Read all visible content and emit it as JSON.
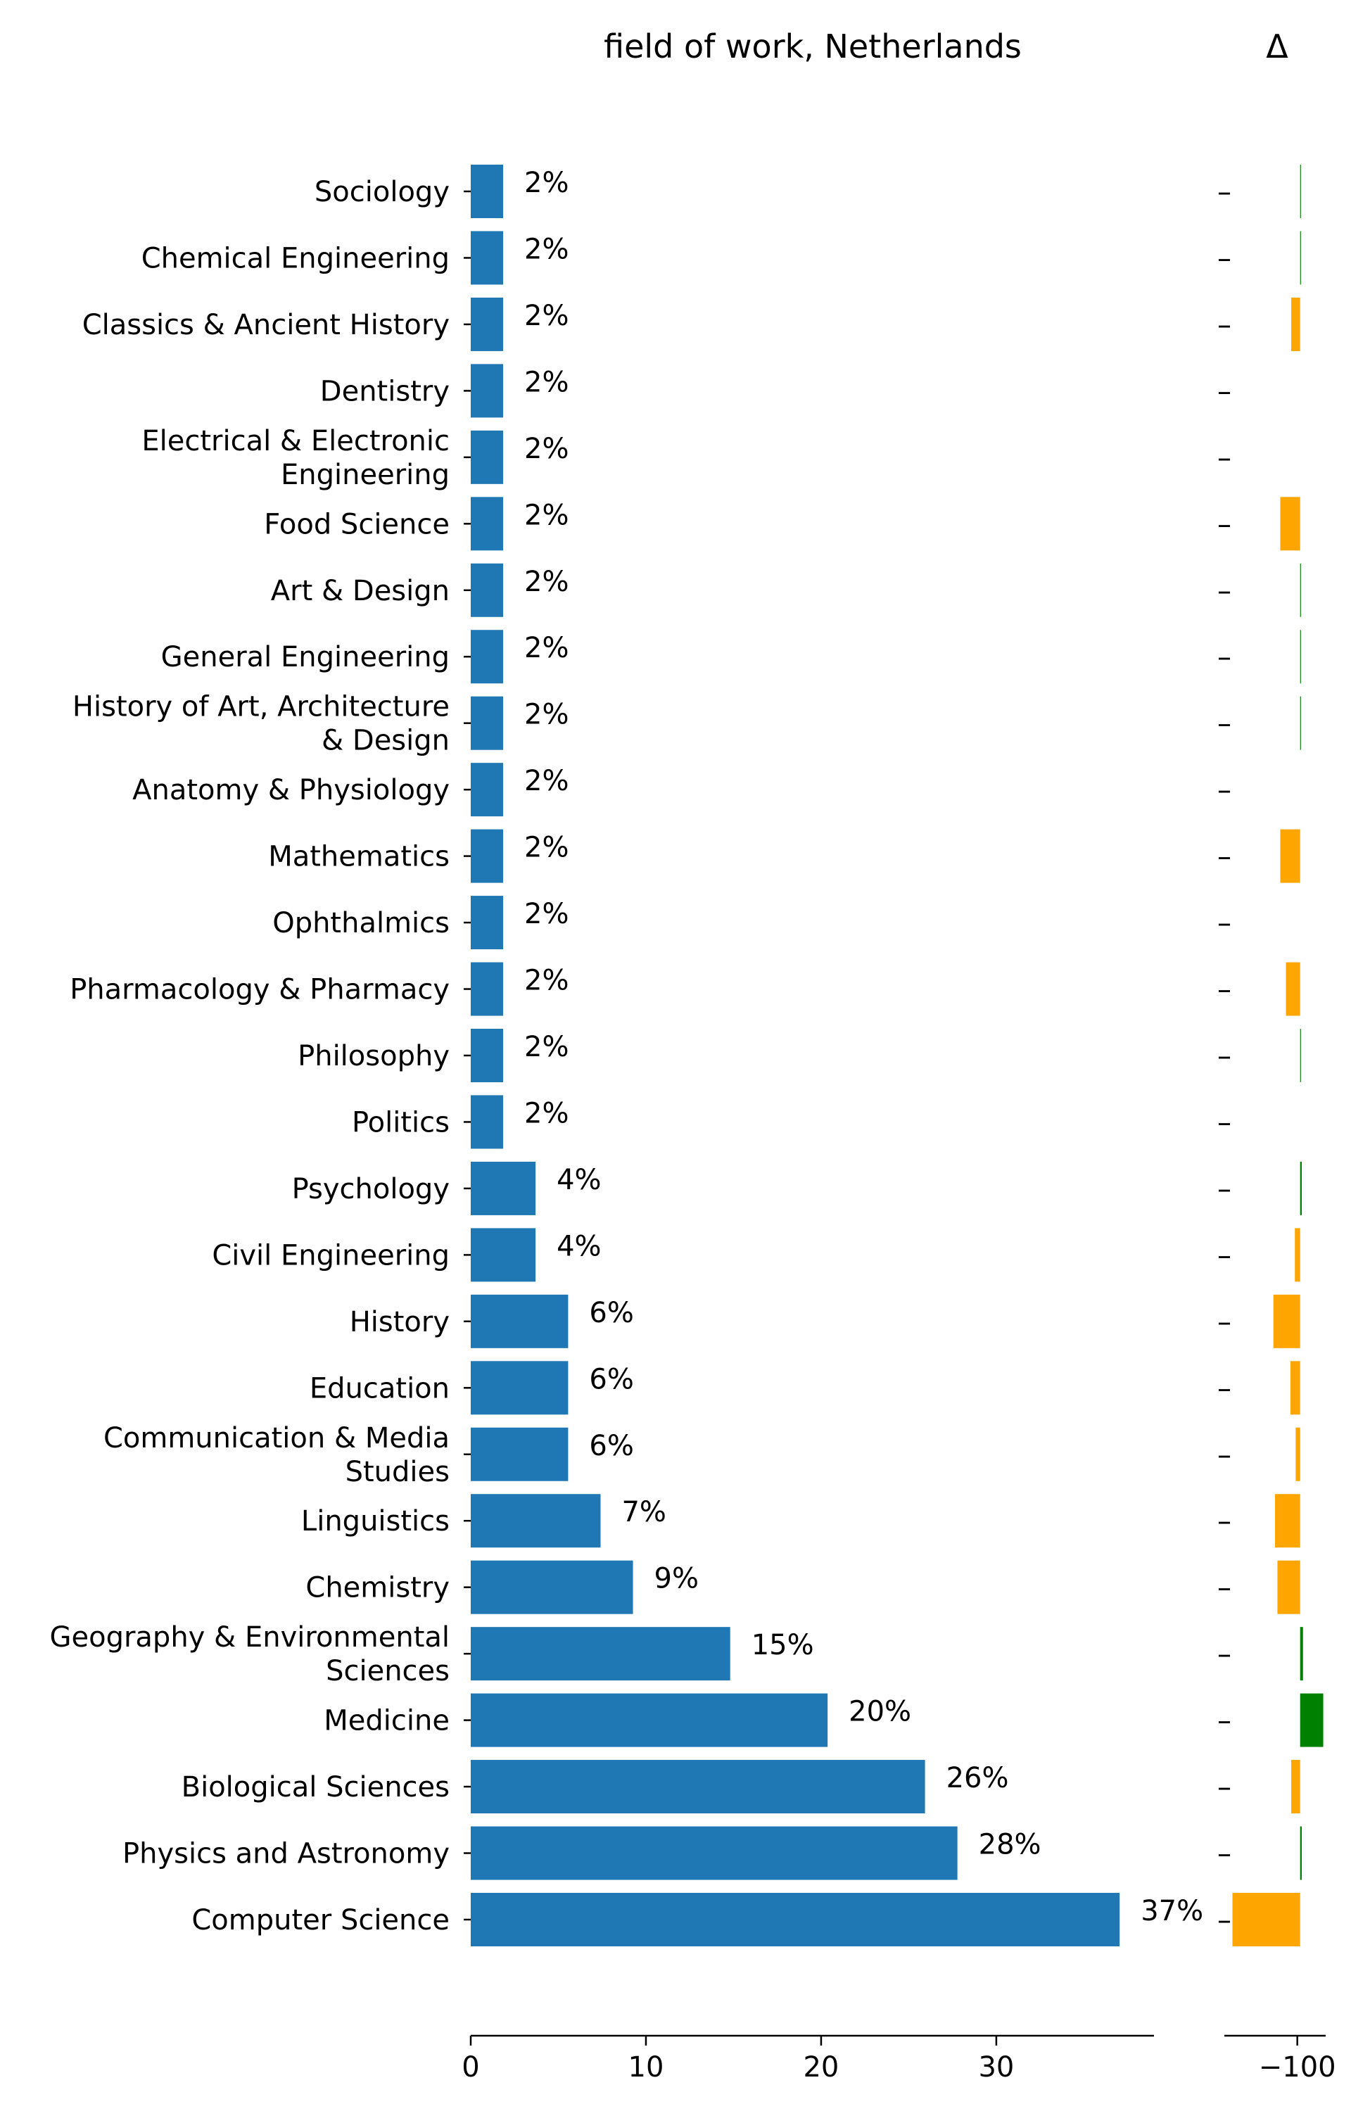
{
  "chart_data": [
    {
      "type": "bar",
      "orientation": "horizontal",
      "title": "field of work, Netherlands",
      "xlabel": "",
      "ylabel": "",
      "xlim": [
        0,
        39
      ],
      "x_ticks": [
        "0",
        "10",
        "20",
        "30"
      ],
      "grid": false,
      "bar_color": "#1f77b4",
      "categories": [
        [
          "Sociology"
        ],
        [
          "Chemical Engineering"
        ],
        [
          "Classics & Ancient History"
        ],
        [
          "Dentistry"
        ],
        [
          "Electrical & Electronic",
          "Engineering"
        ],
        [
          "Food Science"
        ],
        [
          "Art & Design"
        ],
        [
          "General Engineering"
        ],
        [
          "History of Art, Architecture",
          "& Design"
        ],
        [
          "Anatomy & Physiology"
        ],
        [
          "Mathematics"
        ],
        [
          "Ophthalmics"
        ],
        [
          "Pharmacology & Pharmacy"
        ],
        [
          "Philosophy"
        ],
        [
          "Politics"
        ],
        [
          "Psychology"
        ],
        [
          "Civil Engineering"
        ],
        [
          "History"
        ],
        [
          "Education"
        ],
        [
          "Communication & Media",
          "Studies"
        ],
        [
          "Linguistics"
        ],
        [
          "Chemistry"
        ],
        [
          "Geography & Environmental",
          "Sciences"
        ],
        [
          "Medicine"
        ],
        [
          "Biological Sciences"
        ],
        [
          "Physics and Astronomy"
        ],
        [
          "Computer Science"
        ]
      ],
      "values": [
        1.85,
        1.85,
        1.85,
        1.85,
        1.85,
        1.85,
        1.85,
        1.85,
        1.85,
        1.85,
        1.85,
        1.85,
        1.85,
        1.85,
        1.85,
        3.7,
        3.7,
        5.56,
        5.56,
        5.56,
        7.41,
        9.26,
        14.81,
        20.37,
        25.93,
        27.78,
        37.04
      ],
      "value_labels": [
        "2%",
        "2%",
        "2%",
        "2%",
        "2%",
        "2%",
        "2%",
        "2%",
        "2%",
        "2%",
        "2%",
        "2%",
        "2%",
        "2%",
        "2%",
        "4%",
        "4%",
        "6%",
        "6%",
        "6%",
        "7%",
        "9%",
        "15%",
        "20%",
        "26%",
        "28%",
        "37%"
      ]
    },
    {
      "type": "bar",
      "orientation": "horizontal",
      "title": "Δ",
      "xlabel": "",
      "ylabel": "",
      "xlim": [
        -118,
        -93
      ],
      "x_ticks": [
        "−100"
      ],
      "grid": false,
      "y_tick_labels": [
        "–",
        "–",
        "–",
        "–",
        "–",
        "–",
        "–",
        "–",
        "–",
        "–",
        "–",
        "–",
        "–",
        "–",
        "–",
        "–",
        "–",
        "–",
        "–",
        "–",
        "–",
        "–",
        "–",
        "–",
        "–",
        "–",
        "–"
      ],
      "baseline": -99.3,
      "positive_color": "#008000",
      "negative_color": "#ffa500",
      "values": [
        -99.1,
        -99.1,
        -101.5,
        -99.3,
        -99.3,
        -104.2,
        -99.1,
        -99.1,
        -99.1,
        -99.3,
        -104.2,
        -99.3,
        -102.8,
        -99.1,
        -99.3,
        -98.9,
        -100.6,
        -105.9,
        -101.7,
        -100.4,
        -105.5,
        -104.9,
        -98.6,
        -93.6,
        -101.5,
        -98.9,
        -116.0
      ]
    }
  ]
}
